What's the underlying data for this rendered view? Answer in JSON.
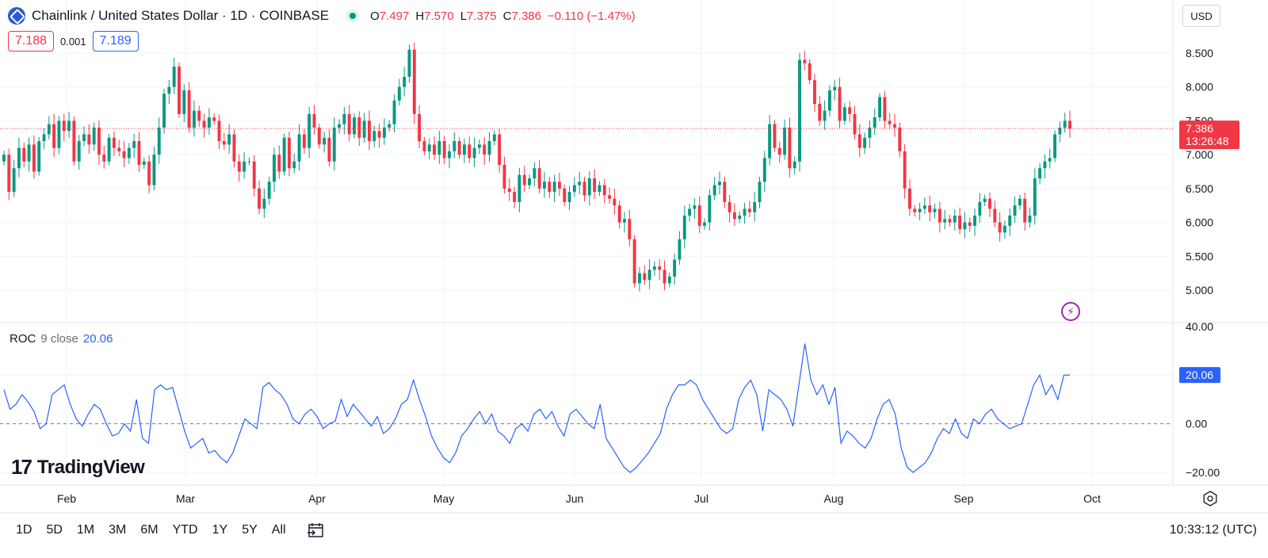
{
  "header": {
    "title": "Chainlink / United States Dollar · 1D · COINBASE",
    "ohlc": [
      {
        "k": "O",
        "v": "7.497"
      },
      {
        "k": "H",
        "v": "7.570"
      },
      {
        "k": "L",
        "v": "7.375"
      },
      {
        "k": "C",
        "v": "7.386"
      },
      {
        "k": "",
        "v": "−0.110 (−1.47%)"
      }
    ],
    "sell_price": "7.188",
    "spread": "0.001",
    "buy_price": "7.189",
    "currency": "USD"
  },
  "price_scale": {
    "ticks": [
      "8.500",
      "8.000",
      "7.500",
      "7.000",
      "6.500",
      "6.000",
      "5.500",
      "5.000"
    ],
    "last_price": "7.386",
    "countdown": "13:26:48"
  },
  "roc": {
    "name": "ROC",
    "params": "9 close",
    "value": "20.06",
    "ticks": [
      "40.00",
      "20.00",
      "0.00",
      "−20.00"
    ]
  },
  "time_axis": [
    "Feb",
    "Mar",
    "Apr",
    "May",
    "Jun",
    "Jul",
    "Aug",
    "Sep",
    "Oct"
  ],
  "ranges": [
    "1D",
    "5D",
    "1M",
    "3M",
    "6M",
    "YTD",
    "1Y",
    "5Y",
    "All"
  ],
  "clock": "10:33:12 (UTC)",
  "brand": "TradingView",
  "colors": {
    "up": "#089981",
    "down": "#f23645",
    "roc": "#2962ff",
    "accent": "#2962ff"
  },
  "chart_data": [
    {
      "type": "candlestick",
      "title": "Chainlink / United States Dollar · 1D · COINBASE",
      "x_start": "2024-01-09",
      "interval": "1D",
      "ylim": [
        4.8,
        8.8
      ],
      "closes": [
        7.0,
        6.45,
        6.8,
        7.1,
        6.9,
        7.15,
        6.75,
        7.2,
        7.3,
        7.45,
        7.1,
        7.5,
        7.35,
        7.5,
        6.9,
        7.2,
        7.3,
        7.15,
        7.4,
        7.0,
        6.9,
        7.25,
        7.1,
        7.05,
        6.95,
        7.1,
        7.2,
        6.85,
        6.9,
        6.55,
        7.0,
        7.4,
        7.9,
        8.0,
        8.3,
        7.6,
        7.95,
        7.4,
        7.65,
        7.5,
        7.4,
        7.55,
        7.5,
        7.2,
        7.15,
        7.3,
        6.9,
        6.75,
        6.9,
        6.9,
        6.5,
        6.2,
        6.35,
        6.6,
        7.0,
        6.75,
        7.25,
        6.8,
        6.9,
        7.3,
        7.1,
        7.6,
        7.4,
        7.15,
        7.25,
        6.9,
        7.4,
        7.45,
        7.6,
        7.3,
        7.55,
        7.25,
        7.5,
        7.2,
        7.35,
        7.25,
        7.4,
        7.45,
        7.8,
        8.0,
        8.15,
        8.55,
        7.6,
        7.2,
        7.05,
        7.15,
        7.0,
        7.2,
        6.95,
        7.05,
        7.2,
        7.0,
        7.15,
        6.95,
        7.1,
        7.15,
        7.0,
        7.2,
        7.3,
        6.85,
        6.5,
        6.45,
        6.3,
        6.7,
        6.55,
        6.65,
        6.8,
        6.5,
        6.6,
        6.45,
        6.6,
        6.5,
        6.3,
        6.45,
        6.55,
        6.6,
        6.4,
        6.65,
        6.45,
        6.55,
        6.4,
        6.35,
        6.25,
        6.0,
        6.05,
        5.75,
        5.1,
        5.25,
        5.15,
        5.3,
        5.35,
        5.3,
        5.1,
        5.2,
        5.45,
        5.75,
        6.1,
        6.2,
        6.25,
        5.95,
        6.0,
        6.4,
        6.55,
        6.6,
        6.3,
        6.15,
        6.05,
        6.1,
        6.2,
        6.15,
        6.3,
        6.6,
        6.95,
        7.45,
        7.1,
        7.0,
        7.4,
        6.8,
        6.9,
        8.4,
        8.35,
        8.1,
        7.75,
        7.5,
        7.65,
        7.95,
        8.0,
        7.5,
        7.7,
        7.6,
        7.3,
        7.1,
        7.25,
        7.4,
        7.55,
        7.85,
        7.5,
        7.45,
        7.4,
        7.05,
        6.5,
        6.2,
        6.15,
        6.2,
        6.25,
        6.15,
        6.2,
        6.0,
        6.05,
        6.0,
        6.1,
        5.9,
        6.0,
        5.95,
        6.1,
        6.3,
        6.35,
        6.2,
        6.0,
        5.85,
        5.95,
        6.1,
        6.25,
        6.35,
        6.0,
        6.1,
        6.65,
        6.8,
        6.9,
        6.95,
        7.3,
        7.4,
        7.5,
        7.386
      ]
    },
    {
      "type": "line",
      "title": "ROC 9 close",
      "series": [
        {
          "name": "ROC",
          "values": [
            14,
            6,
            8,
            12,
            9,
            5,
            -2,
            0,
            12,
            14,
            16,
            8,
            2,
            -1,
            4,
            8,
            6,
            0,
            -5,
            -4,
            0,
            -3,
            10,
            -6,
            -8,
            14,
            16,
            14,
            15,
            6,
            -3,
            -10,
            -8,
            -6,
            -12,
            -11,
            -14,
            -16,
            -12,
            -5,
            2,
            0,
            -2,
            15,
            17,
            14,
            12,
            8,
            2,
            0,
            4,
            6,
            3,
            -2,
            0,
            1,
            10,
            3,
            8,
            5,
            2,
            -1,
            3,
            -4,
            -2,
            2,
            8,
            10,
            18,
            10,
            3,
            -5,
            -10,
            -14,
            -16,
            -12,
            -5,
            -2,
            2,
            5,
            0,
            4,
            -3,
            -5,
            -8,
            -2,
            0,
            -3,
            4,
            6,
            2,
            5,
            -1,
            -5,
            4,
            6,
            3,
            0,
            -2,
            8,
            -6,
            -10,
            -14,
            -18,
            -20,
            -18,
            -15,
            -12,
            -8,
            -4,
            6,
            12,
            16,
            16,
            18,
            16,
            10,
            6,
            2,
            -2,
            -4,
            -2,
            10,
            15,
            18,
            12,
            -3,
            14,
            12,
            10,
            6,
            -1,
            16,
            33,
            18,
            12,
            16,
            8,
            15,
            -8,
            -3,
            -5,
            -8,
            -10,
            -6,
            2,
            8,
            10,
            4,
            -10,
            -18,
            -20,
            -18,
            -16,
            -12,
            -6,
            -2,
            -4,
            2,
            -4,
            -6,
            2,
            0,
            4,
            6,
            2,
            0,
            -2,
            -1,
            0,
            8,
            16,
            20,
            12,
            16,
            10,
            20,
            20.06
          ]
        }
      ],
      "ylim": [
        -20,
        40
      ]
    }
  ]
}
